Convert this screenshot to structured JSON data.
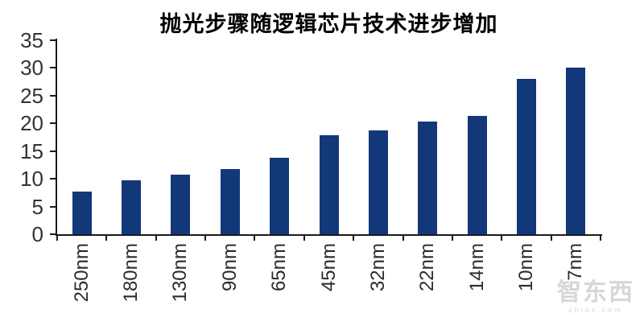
{
  "chart_data": {
    "type": "bar",
    "title": "抛光步骤随逻辑芯片技术进步增加",
    "categories": [
      "250nm",
      "180nm",
      "130nm",
      "90nm",
      "65nm",
      "45nm",
      "32nm",
      "22nm",
      "14nm",
      "10nm",
      "7nm"
    ],
    "values": [
      7.7,
      9.8,
      10.7,
      11.7,
      13.8,
      17.8,
      18.7,
      20.3,
      21.4,
      28,
      30
    ],
    "xlabel": "",
    "ylabel": "",
    "ylim": [
      0,
      35
    ],
    "yticks": [
      0,
      5,
      10,
      15,
      20,
      25,
      30,
      35
    ],
    "grid": false,
    "legend_position": "none",
    "bar_color": "#13387A",
    "axis_color": "#1a1a1a",
    "tick_label_color": "#333333",
    "title_color": "#000000",
    "background_color": "#ffffff"
  },
  "watermark": {
    "brand": "智东西",
    "domain": "zhidx.com"
  }
}
